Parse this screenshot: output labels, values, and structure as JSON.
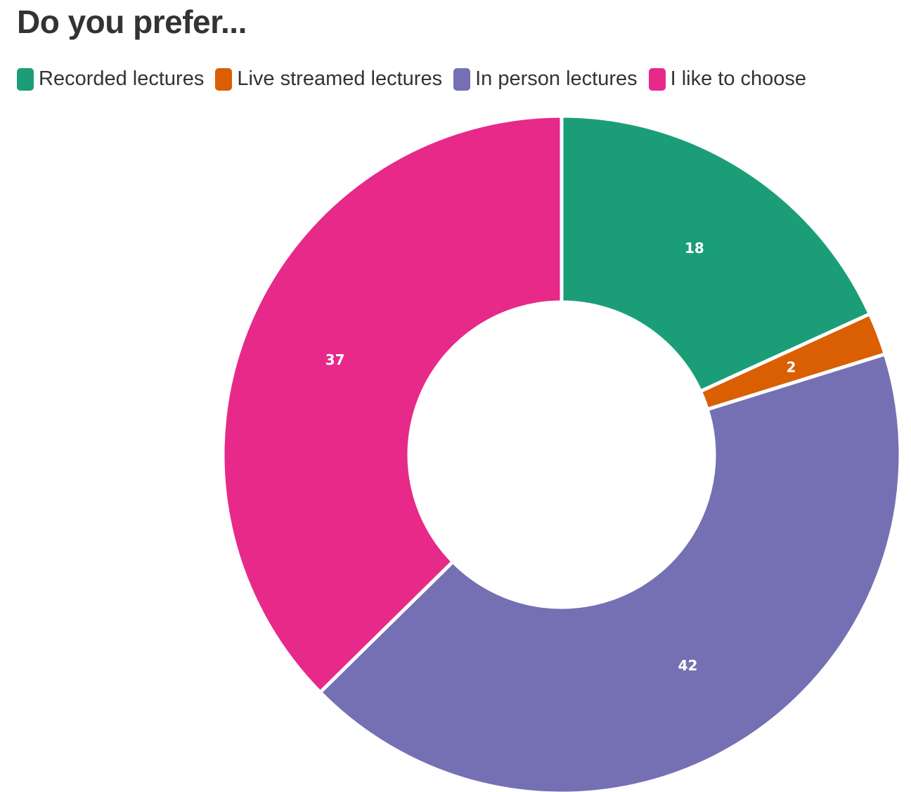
{
  "chart_data": {
    "type": "pie",
    "title": "Do you prefer...",
    "categories": [
      "Recorded lectures",
      "Live streamed lectures",
      "In person lectures",
      "I like to choose"
    ],
    "values": [
      18,
      2,
      42,
      37
    ],
    "colors": [
      "#1b9e77",
      "#d95f02",
      "#7570b3",
      "#e7298a"
    ],
    "donut": true,
    "legend_position": "top-left",
    "data_labels": [
      "18",
      "2",
      "42",
      "37"
    ]
  }
}
